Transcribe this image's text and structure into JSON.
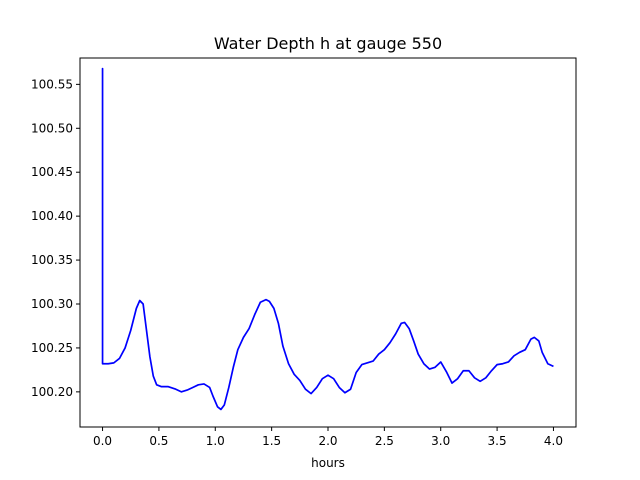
{
  "chart_data": {
    "type": "line",
    "title": "Water Depth h at gauge 550",
    "xlabel": "hours",
    "ylabel": "",
    "xlim": [
      -0.2,
      4.2
    ],
    "ylim": [
      100.16,
      100.58
    ],
    "xticks": [
      0.0,
      0.5,
      1.0,
      1.5,
      2.0,
      2.5,
      3.0,
      3.5,
      4.0
    ],
    "xtick_labels": [
      "0.0",
      "0.5",
      "1.0",
      "1.5",
      "2.0",
      "2.5",
      "3.0",
      "3.5",
      "4.0"
    ],
    "yticks": [
      100.2,
      100.25,
      100.3,
      100.35,
      100.4,
      100.45,
      100.5,
      100.55
    ],
    "ytick_labels": [
      "100.20",
      "100.25",
      "100.30",
      "100.35",
      "100.40",
      "100.45",
      "100.50",
      "100.55"
    ],
    "grid": false,
    "series": [
      {
        "color": "#0000ff",
        "x": [
          0.0,
          0.0,
          0.0,
          0.05,
          0.1,
          0.15,
          0.2,
          0.25,
          0.3,
          0.33,
          0.36,
          0.38,
          0.42,
          0.45,
          0.48,
          0.52,
          0.58,
          0.65,
          0.7,
          0.75,
          0.8,
          0.85,
          0.9,
          0.95,
          0.98,
          1.02,
          1.05,
          1.08,
          1.12,
          1.16,
          1.2,
          1.25,
          1.3,
          1.35,
          1.4,
          1.45,
          1.48,
          1.52,
          1.56,
          1.6,
          1.65,
          1.7,
          1.75,
          1.8,
          1.85,
          1.9,
          1.95,
          2.0,
          2.05,
          2.1,
          2.15,
          2.2,
          2.25,
          2.3,
          2.35,
          2.4,
          2.45,
          2.5,
          2.55,
          2.6,
          2.65,
          2.68,
          2.72,
          2.76,
          2.8,
          2.85,
          2.9,
          2.95,
          3.0,
          3.05,
          3.1,
          3.15,
          3.2,
          3.25,
          3.3,
          3.35,
          3.4,
          3.45,
          3.5,
          3.55,
          3.6,
          3.65,
          3.7,
          3.75,
          3.8,
          3.83,
          3.87,
          3.9,
          3.95,
          4.0
        ],
        "y": [
          100.232,
          100.568,
          100.232,
          100.232,
          100.233,
          100.238,
          100.25,
          100.27,
          100.295,
          100.304,
          100.3,
          100.28,
          100.24,
          100.218,
          100.208,
          100.206,
          100.206,
          100.203,
          100.2,
          100.202,
          100.205,
          100.208,
          100.209,
          100.205,
          100.195,
          100.183,
          100.18,
          100.185,
          100.205,
          100.228,
          100.248,
          100.262,
          100.272,
          100.288,
          100.302,
          100.305,
          100.303,
          100.295,
          100.278,
          100.252,
          100.232,
          100.22,
          100.213,
          100.203,
          100.198,
          100.205,
          100.215,
          100.219,
          100.215,
          100.205,
          100.199,
          100.203,
          100.222,
          100.231,
          100.233,
          100.235,
          100.243,
          100.248,
          100.256,
          100.266,
          100.278,
          100.279,
          100.272,
          100.258,
          100.243,
          100.232,
          100.226,
          100.228,
          100.234,
          100.223,
          100.21,
          100.215,
          100.224,
          100.224,
          100.216,
          100.212,
          100.216,
          100.224,
          100.231,
          100.232,
          100.234,
          100.241,
          100.245,
          100.248,
          100.26,
          100.262,
          100.258,
          100.245,
          100.232,
          100.229
        ]
      }
    ]
  }
}
